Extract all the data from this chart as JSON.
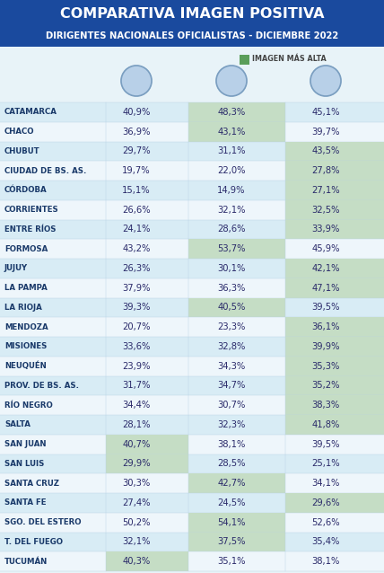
{
  "title_line1": "COMPARATIVA IMAGEN POSITIVA",
  "title_line2": "DIRIGENTES NACIONALES OFICIALISTAS - DICIEMBRE 2022",
  "legend_label": "IMAGEN MÁS ALTA",
  "provinces": [
    "CATAMARCA",
    "CHACO",
    "CHUBUT",
    "CIUDAD DE BS. AS.",
    "CÓRDOBA",
    "CORRIENTES",
    "ENTRE RÍOS",
    "FORMOSA",
    "JUJUY",
    "LA PAMPA",
    "LA RIOJA",
    "MENDOZA",
    "MISIONES",
    "NEUQUÉN",
    "PROV. DE BS. AS.",
    "RÍO NEGRO",
    "SALTA",
    "SAN JUAN",
    "SAN LUIS",
    "SANTA CRUZ",
    "SANTA FE",
    "SGO. DEL ESTERO",
    "T. DEL FUEGO",
    "TUCUMÁN"
  ],
  "col1": [
    40.9,
    36.9,
    29.7,
    19.7,
    15.1,
    26.6,
    24.1,
    43.2,
    26.3,
    37.9,
    39.3,
    20.7,
    33.6,
    23.9,
    31.7,
    34.4,
    28.1,
    40.7,
    29.9,
    30.3,
    27.4,
    50.2,
    32.1,
    40.3
  ],
  "col2": [
    48.3,
    43.1,
    31.1,
    22.0,
    14.9,
    32.1,
    28.6,
    53.7,
    30.1,
    36.3,
    40.5,
    23.3,
    32.8,
    34.3,
    34.7,
    30.7,
    32.3,
    38.1,
    28.5,
    42.7,
    24.5,
    54.1,
    37.5,
    35.1
  ],
  "col3": [
    45.1,
    39.7,
    43.5,
    27.8,
    27.1,
    32.5,
    33.9,
    45.9,
    42.1,
    47.1,
    39.5,
    36.1,
    39.9,
    35.3,
    35.2,
    38.3,
    41.8,
    39.5,
    25.1,
    34.1,
    29.6,
    52.6,
    35.4,
    38.1
  ],
  "header_bg": "#1a4a9e",
  "bg_color": "#e8f3f8",
  "highlight_color": "#c5ddc5",
  "row_even_color": "#d8ecf5",
  "row_odd_color": "#eef6fb",
  "title_color": "#ffffff",
  "legend_green": "#5a9e5a",
  "province_color": "#1a3a6a",
  "value_color": "#2a2a6a"
}
